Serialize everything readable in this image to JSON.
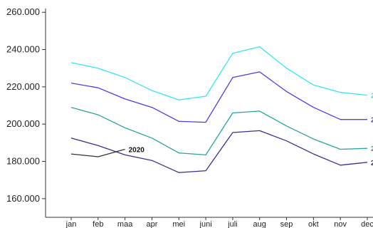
{
  "chart_data": {
    "type": "line",
    "title": "",
    "xlabel": "",
    "ylabel": "",
    "categories": [
      "jan",
      "feb",
      "maa",
      "apr",
      "mei",
      "juni",
      "juli",
      "aug",
      "sep",
      "okt",
      "nov",
      "dec"
    ],
    "y_ticks": [
      "160.000",
      "180.000",
      "200.000",
      "220.000",
      "240.000",
      "260.000"
    ],
    "ylim": [
      150000,
      262000
    ],
    "grid": false,
    "series": [
      {
        "name": "2",
        "color": "#35e6ef",
        "values": [
          233000,
          230000,
          225000,
          218000,
          213000,
          215000,
          238000,
          241500,
          230000,
          221000,
          217000,
          215500
        ]
      },
      {
        "name": "2",
        "color": "#4b3fe0",
        "values": [
          222000,
          219500,
          213500,
          209000,
          201500,
          201000,
          225000,
          228000,
          217500,
          209000,
          202500,
          202500
        ]
      },
      {
        "name": "2",
        "color": "#2aa39b",
        "values": [
          209000,
          205000,
          198000,
          192500,
          184500,
          183500,
          206000,
          207000,
          199000,
          192000,
          186500,
          187000
        ]
      },
      {
        "name": "2",
        "color": "#39308f",
        "values": [
          192500,
          188500,
          183500,
          180500,
          174000,
          175000,
          195500,
          196500,
          191000,
          184000,
          178000,
          179500
        ]
      },
      {
        "name": "2020",
        "color": "#333333",
        "values": [
          184000,
          182500,
          186500,
          null,
          null,
          null,
          null,
          null,
          null,
          null,
          null,
          null
        ]
      }
    ]
  }
}
